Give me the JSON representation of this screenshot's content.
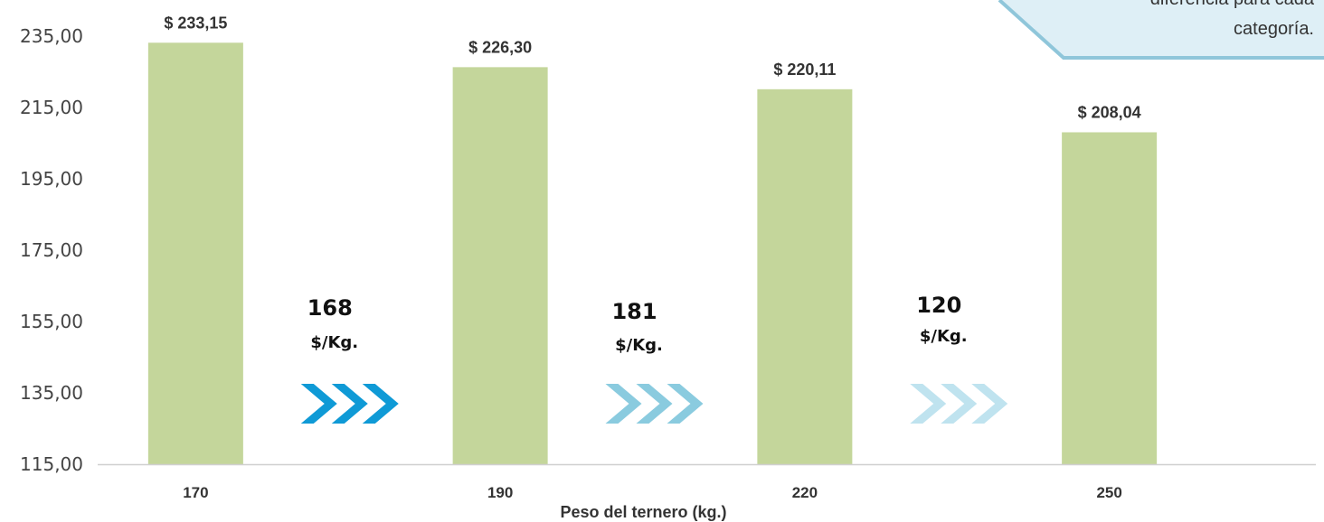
{
  "chart_data": {
    "type": "bar",
    "categories": [
      "170",
      "190",
      "220",
      "250"
    ],
    "values": [
      233.15,
      226.3,
      220.11,
      208.04
    ],
    "data_labels": [
      "$ 233,15",
      "$ 226,30",
      "$ 220,11",
      "$ 208,04"
    ],
    "xlabel": "Peso del ternero (kg.)",
    "ylabel": "",
    "ylim": [
      115,
      235
    ],
    "y_ticks": [
      "115,00",
      "135,00",
      "155,00",
      "175,00",
      "195,00",
      "215,00",
      "235,00"
    ],
    "grid": false,
    "bar_color": "#c4d69b",
    "annotations": [
      {
        "value": "168",
        "unit": "$/Kg.",
        "chevron_color": "#0f9ad6"
      },
      {
        "value": "181",
        "unit": "$/Kg.",
        "chevron_color": "#8acbdf"
      },
      {
        "value": "120",
        "unit": "$/Kg.",
        "chevron_color": "#bfe3ef"
      }
    ],
    "callout": {
      "lines": [
        "diferencia para cada",
        "categoría."
      ],
      "fill": "#deeff6",
      "border": "#8fc6da"
    }
  }
}
